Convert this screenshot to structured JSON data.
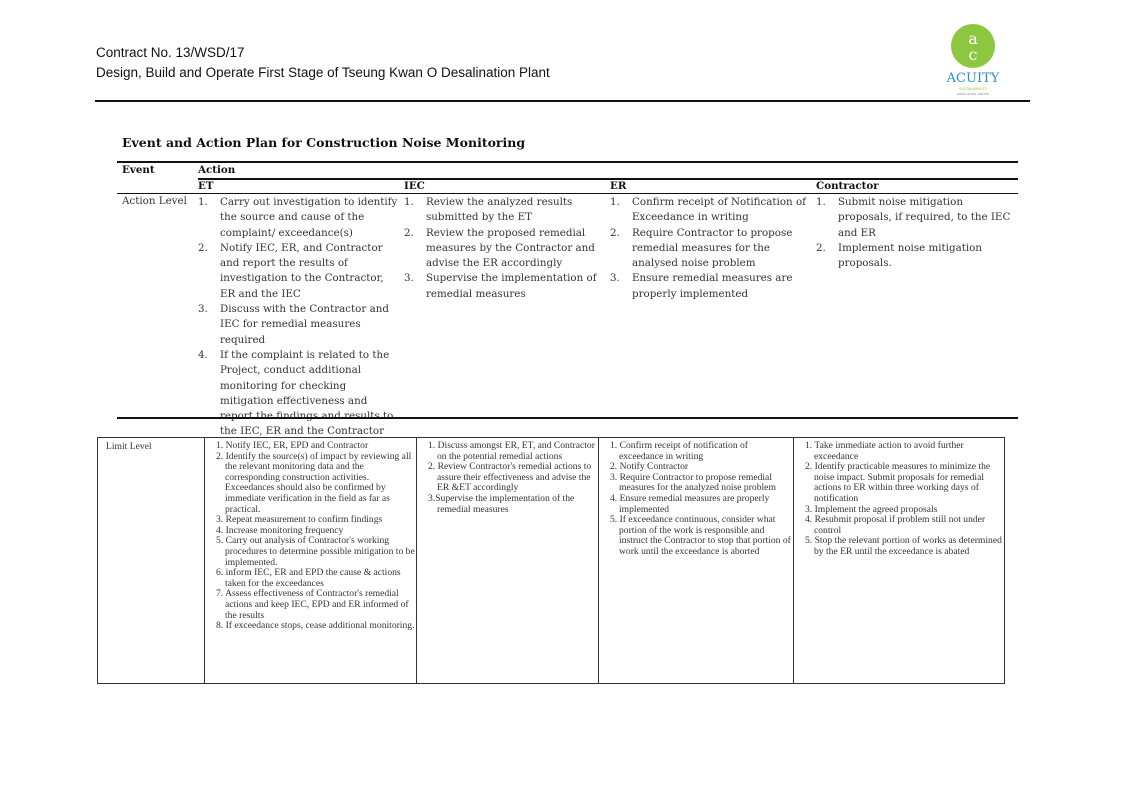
{
  "header": {
    "contract": "Contract No. 13/WSD/17",
    "project": "Design, Build and Operate First Stage of Tseung Kwan O Desalination Plant",
    "logo_text": "ACUITY",
    "logo_sub": "SUSTAINABILITY CONSULTING LIMITED",
    "logo_color": "#8dc63f"
  },
  "title": "Event and Action Plan for Construction Noise Monitoring",
  "table1": {
    "event_header": "Event",
    "action_header": "Action",
    "columns": [
      "ET",
      "IEC",
      "ER",
      "Contractor"
    ],
    "row_label": "Action Level",
    "cells": [
      [
        "Carry out investigation to identify the source and cause of the complaint/ exceedance(s)",
        "Notify IEC, ER, and Contractor and report the results of investigation to the Contractor, ER and the IEC",
        "Discuss with the Contractor and IEC for remedial measures required",
        "If the complaint is related to the Project, conduct additional monitoring for checking mitigation effectiveness and report the findings and results to the IEC, ER and the Contractor"
      ],
      [
        "Review the analyzed results submitted by the ET",
        "Review the proposed remedial measures by the Contractor and advise the ER accordingly",
        "Supervise the implementation of remedial measures"
      ],
      [
        "Confirm receipt of Notification of Exceedance in writing",
        "Require Contractor to propose remedial measures for the analysed noise problem",
        "Ensure remedial measures are properly implemented"
      ],
      [
        "Submit noise mitigation proposals, if required, to the IEC and ER",
        "Implement noise mitigation proposals."
      ]
    ]
  },
  "table2": {
    "row_label": "Limit Level",
    "cells": [
      [
        "1. Notify IEC, ER, EPD and Contractor",
        "2. Identify the source(s) of impact by reviewing all the relevant monitoring data and the corresponding construction activities. Exceedances should also be confirmed by immediate verification in the field as far as practical.",
        "3. Repeat measurement to confirm findings",
        "4. Increase monitoring frequency",
        "5. Carry out analysis of Contractor's working procedures to determine possible mitigation to be implemented.",
        "6. inform IEC, ER and EPD the cause & actions taken for the exceedances",
        "7. Assess effectiveness of Contractor's remedial actions and keep IEC, EPD and ER informed of the results",
        "8. If exceedance stops, cease additional monitoring."
      ],
      [
        "1. Discuss amongst ER, ET, and Contractor on the potential remedial actions",
        "2. Review Contractor's remedial actions to assure their effectiveness and advise the ER &ET accordingly",
        "3.Supervise the implementation of the remedial measures"
      ],
      [
        "1. Confirm receipt of notification of exceedance in writing",
        "2. Notify Contractor",
        "3. Require Contractor to propose remedial measures for the analyzed noise problem",
        "4. Ensure remedial measures are properly implemented",
        "5. If exceedance continuous, consider what portion of the work is responsible and instruct the Contractor to stop that portion of work until the exceedance is aborted"
      ],
      [
        "1. Take immediate action to avoid further exceedance",
        "2. Identify practicable measures to minimize the noise impact.  Submit proposals for remedial actions to ER within three working days of notification",
        "3. Implement the agreed proposals",
        "4. Resubmit proposal if problem still not under control",
        "5. Stop the relevant portion of works as determined by the ER until the exceedance is abated"
      ]
    ]
  }
}
